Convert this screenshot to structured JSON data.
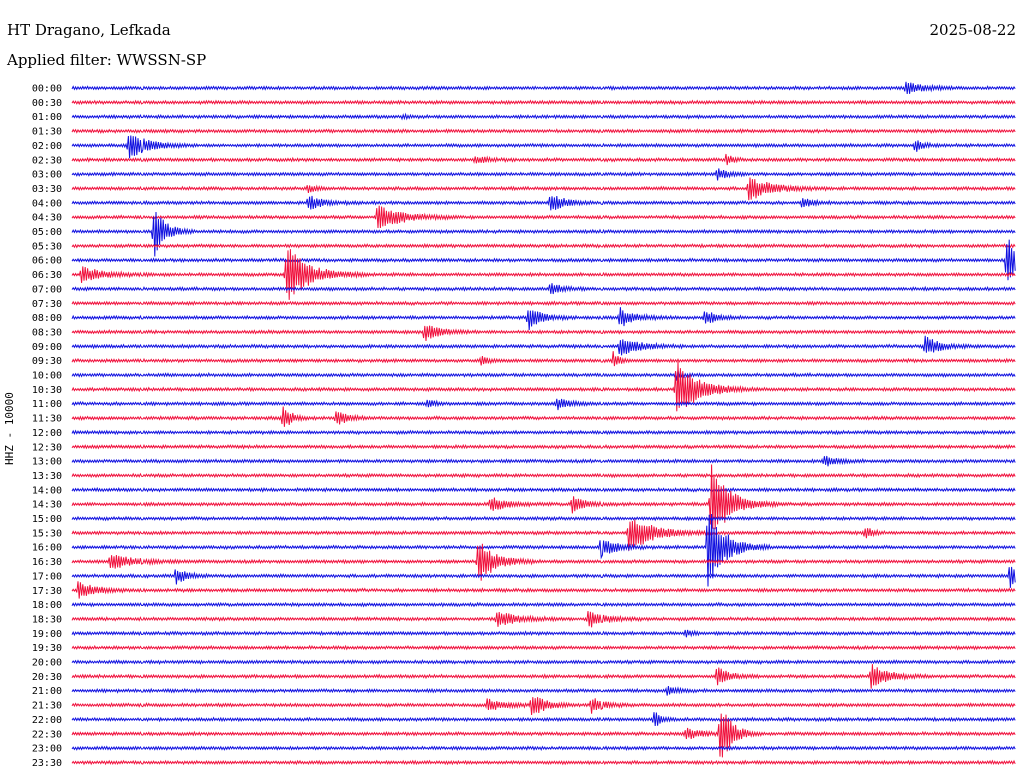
{
  "header": {
    "station": "HT Dragano, Lefkada",
    "date": "2025-08-22",
    "filter": "Applied filter: WWSSN-SP"
  },
  "colors": {
    "even": "#1010e0",
    "odd": "#f0103c"
  },
  "chart_data": {
    "type": "line",
    "ylabel": "HHZ - 10000",
    "xlim": [
      0,
      30
    ],
    "x_unit": "minutes",
    "rows": [
      "00:00",
      "00:30",
      "01:00",
      "01:30",
      "02:00",
      "02:30",
      "03:00",
      "03:30",
      "04:00",
      "04:30",
      "05:00",
      "05:30",
      "06:00",
      "06:30",
      "07:00",
      "07:30",
      "08:00",
      "08:30",
      "09:00",
      "09:30",
      "10:00",
      "10:30",
      "11:00",
      "11:30",
      "12:00",
      "12:30",
      "13:00",
      "13:30",
      "14:00",
      "14:30",
      "15:00",
      "15:30",
      "16:00",
      "16:30",
      "17:00",
      "17:30",
      "18:00",
      "18:30",
      "19:00",
      "19:30",
      "20:00",
      "20:30",
      "21:00",
      "21:30",
      "22:00",
      "22:30",
      "23:00",
      "23:30"
    ],
    "events": [
      {
        "row": 0,
        "t": 26.5,
        "amp": 6,
        "dur": 0.9
      },
      {
        "row": 2,
        "t": 10.5,
        "amp": 2,
        "dur": 0.3
      },
      {
        "row": 4,
        "t": 1.8,
        "amp": 14,
        "dur": 1.0
      },
      {
        "row": 4,
        "t": 26.8,
        "amp": 6,
        "dur": 0.4
      },
      {
        "row": 5,
        "t": 12.8,
        "amp": 4,
        "dur": 0.6
      },
      {
        "row": 5,
        "t": 20.8,
        "amp": 6,
        "dur": 0.3
      },
      {
        "row": 6,
        "t": 20.5,
        "amp": 6,
        "dur": 0.5
      },
      {
        "row": 7,
        "t": 7.5,
        "amp": 4,
        "dur": 0.4
      },
      {
        "row": 7,
        "t": 21.5,
        "amp": 12,
        "dur": 1.2
      },
      {
        "row": 8,
        "t": 7.5,
        "amp": 7,
        "dur": 0.8
      },
      {
        "row": 8,
        "t": 15.2,
        "amp": 10,
        "dur": 0.7
      },
      {
        "row": 8,
        "t": 23.2,
        "amp": 5,
        "dur": 0.5
      },
      {
        "row": 9,
        "t": 9.7,
        "amp": 14,
        "dur": 1.2
      },
      {
        "row": 10,
        "t": 2.6,
        "amp": 26,
        "dur": 0.6
      },
      {
        "row": 12,
        "t": 29.7,
        "amp": 24,
        "dur": 0.9
      },
      {
        "row": 13,
        "t": 0.3,
        "amp": 8,
        "dur": 1.2
      },
      {
        "row": 13,
        "t": 6.8,
        "amp": 30,
        "dur": 1.2
      },
      {
        "row": 14,
        "t": 15.2,
        "amp": 6,
        "dur": 0.6
      },
      {
        "row": 16,
        "t": 14.5,
        "amp": 12,
        "dur": 0.7
      },
      {
        "row": 16,
        "t": 17.4,
        "amp": 10,
        "dur": 0.8
      },
      {
        "row": 16,
        "t": 20.1,
        "amp": 8,
        "dur": 0.6
      },
      {
        "row": 17,
        "t": 11.2,
        "amp": 9,
        "dur": 0.8
      },
      {
        "row": 18,
        "t": 17.4,
        "amp": 10,
        "dur": 1.0
      },
      {
        "row": 18,
        "t": 27.1,
        "amp": 10,
        "dur": 0.8
      },
      {
        "row": 19,
        "t": 13.0,
        "amp": 4,
        "dur": 0.4
      },
      {
        "row": 19,
        "t": 17.2,
        "amp": 9,
        "dur": 0.3
      },
      {
        "row": 20,
        "t": 19.2,
        "amp": 5,
        "dur": 0.3
      },
      {
        "row": 21,
        "t": 19.2,
        "amp": 30,
        "dur": 1.2
      },
      {
        "row": 22,
        "t": 11.3,
        "amp": 5,
        "dur": 0.4
      },
      {
        "row": 22,
        "t": 15.4,
        "amp": 6,
        "dur": 0.7
      },
      {
        "row": 23,
        "t": 6.7,
        "amp": 12,
        "dur": 0.5
      },
      {
        "row": 23,
        "t": 8.4,
        "amp": 8,
        "dur": 0.6
      },
      {
        "row": 26,
        "t": 23.9,
        "amp": 6,
        "dur": 0.6
      },
      {
        "row": 29,
        "t": 13.3,
        "amp": 7,
        "dur": 0.9
      },
      {
        "row": 29,
        "t": 15.9,
        "amp": 9,
        "dur": 0.7
      },
      {
        "row": 29,
        "t": 20.3,
        "amp": 40,
        "dur": 1.0
      },
      {
        "row": 31,
        "t": 17.7,
        "amp": 20,
        "dur": 1.2
      },
      {
        "row": 31,
        "t": 25.2,
        "amp": 6,
        "dur": 0.4
      },
      {
        "row": 32,
        "t": 16.8,
        "amp": 10,
        "dur": 0.8
      },
      {
        "row": 32,
        "t": 20.2,
        "amp": 44,
        "dur": 0.9
      },
      {
        "row": 33,
        "t": 1.2,
        "amp": 8,
        "dur": 1.2
      },
      {
        "row": 33,
        "t": 12.9,
        "amp": 22,
        "dur": 0.9
      },
      {
        "row": 34,
        "t": 3.3,
        "amp": 8,
        "dur": 0.6
      },
      {
        "row": 34,
        "t": 29.8,
        "amp": 12,
        "dur": 0.7
      },
      {
        "row": 35,
        "t": 0.2,
        "amp": 10,
        "dur": 0.8
      },
      {
        "row": 37,
        "t": 13.5,
        "amp": 9,
        "dur": 1.0
      },
      {
        "row": 37,
        "t": 16.4,
        "amp": 9,
        "dur": 0.9
      },
      {
        "row": 38,
        "t": 19.5,
        "amp": 4,
        "dur": 0.3
      },
      {
        "row": 41,
        "t": 20.5,
        "amp": 10,
        "dur": 0.6
      },
      {
        "row": 41,
        "t": 25.4,
        "amp": 12,
        "dur": 0.9
      },
      {
        "row": 42,
        "t": 18.9,
        "amp": 4,
        "dur": 0.5
      },
      {
        "row": 43,
        "t": 13.2,
        "amp": 6,
        "dur": 1.0
      },
      {
        "row": 43,
        "t": 14.6,
        "amp": 12,
        "dur": 0.7
      },
      {
        "row": 43,
        "t": 16.5,
        "amp": 8,
        "dur": 0.7
      },
      {
        "row": 44,
        "t": 18.5,
        "amp": 9,
        "dur": 0.3
      },
      {
        "row": 45,
        "t": 20.6,
        "amp": 34,
        "dur": 0.6
      },
      {
        "row": 45,
        "t": 19.5,
        "amp": 6,
        "dur": 0.8
      }
    ]
  }
}
